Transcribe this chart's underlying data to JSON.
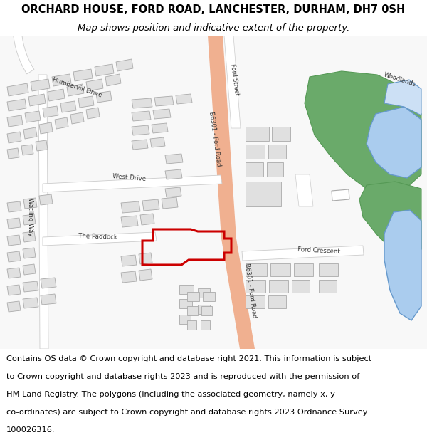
{
  "title": "ORCHARD HOUSE, FORD ROAD, LANCHESTER, DURHAM, DH7 0SH",
  "subtitle": "Map shows position and indicative extent of the property.",
  "footer_lines": [
    "Contains OS data © Crown copyright and database right 2021. This information is subject",
    "to Crown copyright and database rights 2023 and is reproduced with the permission of",
    "HM Land Registry. The polygons (including the associated geometry, namely x, y",
    "co-ordinates) are subject to Crown copyright and database rights 2023 Ordnance Survey",
    "100026316."
  ],
  "title_fontsize": 10.5,
  "subtitle_fontsize": 9.5,
  "footer_fontsize": 8.2,
  "road_main_color": "#f0b090",
  "road_secondary_color": "#ffffff",
  "building_fill": "#e0e0e0",
  "building_edge": "#aaaaaa",
  "green_fill": "#6aaa6a",
  "green_edge": "#559955",
  "water_fill": "#aaccee",
  "water_edge": "#6699cc",
  "water_light_fill": "#cce0f5",
  "plot_color": "#cc0000",
  "map_bg": "#f8f8f8"
}
